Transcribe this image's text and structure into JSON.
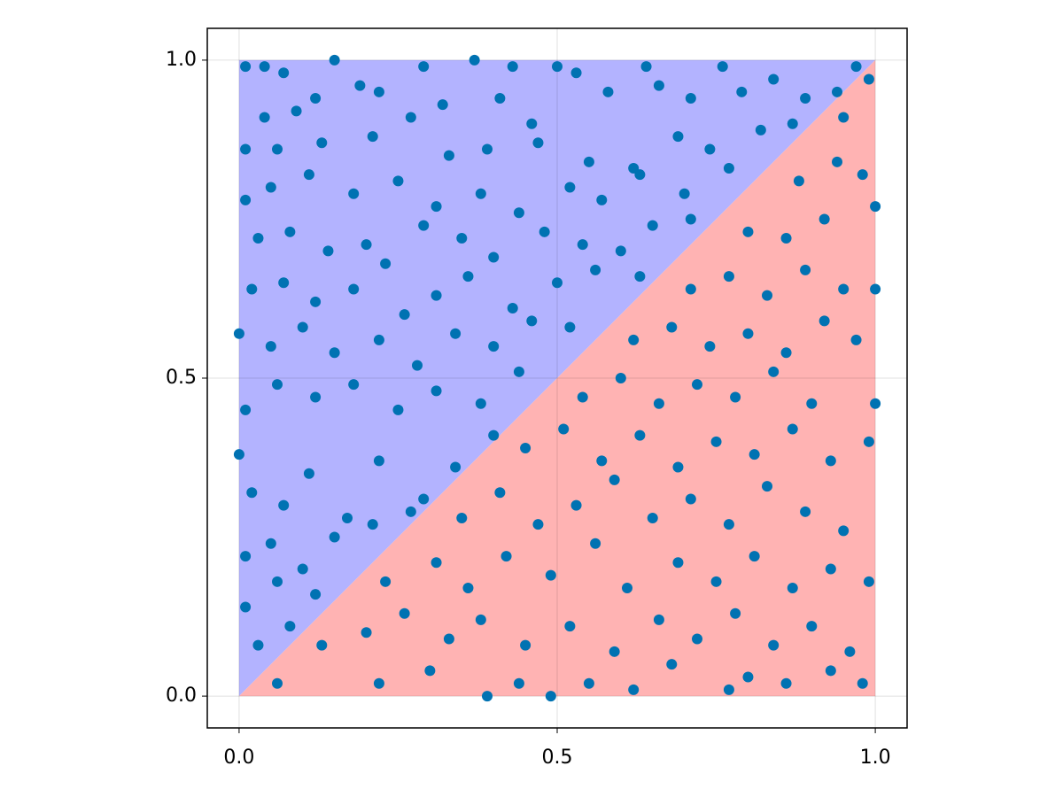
{
  "chart_data": {
    "type": "scatter",
    "x": [
      0.01,
      0.04,
      0.15,
      0.37,
      0.5,
      0.64,
      0.76,
      0.29,
      0.43,
      0.53,
      0.07,
      0.12,
      0.19,
      0.22,
      0.04,
      0.09,
      0.27,
      0.32,
      0.41,
      0.46,
      0.58,
      0.66,
      0.71,
      0.79,
      0.84,
      0.89,
      0.94,
      0.97,
      0.01,
      0.06,
      0.13,
      0.21,
      0.33,
      0.39,
      0.47,
      0.55,
      0.62,
      0.69,
      0.74,
      0.82,
      0.87,
      0.01,
      0.05,
      0.11,
      0.18,
      0.25,
      0.31,
      0.38,
      0.44,
      0.52,
      0.57,
      0.63,
      0.7,
      0.77,
      0.03,
      0.08,
      0.14,
      0.2,
      0.23,
      0.29,
      0.35,
      0.4,
      0.48,
      0.54,
      0.6,
      0.65,
      0.71,
      0.02,
      0.07,
      0.12,
      0.18,
      0.26,
      0.31,
      0.36,
      0.43,
      0.5,
      0.56,
      0.63,
      0,
      0.05,
      0.1,
      0.15,
      0.22,
      0.28,
      0.34,
      0.4,
      0.46,
      0.52,
      0,
      0.01,
      0.06,
      0.12,
      0.18,
      0.25,
      0.31,
      0.38,
      0.44,
      0.02,
      0.07,
      0.11,
      0.17,
      0.22,
      0.29,
      0.34,
      0.4,
      0.01,
      0.05,
      0.1,
      0.15,
      0.21,
      0.27,
      0.01,
      0.06,
      0.12,
      0.03,
      0.08,
      0.39,
      0.49,
      0.62,
      0.77,
      0.22,
      0.06,
      0.3,
      0.44,
      0.55,
      0.68,
      0.8,
      0.86,
      0.93,
      0.98,
      0.13,
      0.2,
      0.26,
      0.33,
      0.38,
      0.45,
      0.52,
      0.59,
      0.66,
      0.72,
      0.78,
      0.84,
      0.9,
      0.96,
      0.23,
      0.31,
      0.36,
      0.42,
      0.49,
      0.56,
      0.61,
      0.69,
      0.75,
      0.81,
      0.87,
      0.93,
      0.99,
      0.35,
      0.41,
      0.47,
      0.53,
      0.59,
      0.65,
      0.71,
      0.77,
      0.83,
      0.89,
      0.95,
      0.45,
      0.51,
      0.57,
      0.63,
      0.69,
      0.75,
      0.81,
      0.87,
      0.93,
      0.99,
      0.54,
      0.6,
      0.66,
      0.72,
      0.78,
      0.84,
      0.9,
      1.0,
      0.62,
      0.68,
      0.74,
      0.8,
      0.86,
      0.92,
      0.97,
      0.71,
      0.77,
      0.83,
      0.89,
      0.95,
      1.0,
      0.8,
      0.86,
      0.92,
      1.0,
      0.88,
      0.94,
      0.98,
      0.95,
      0.99
    ],
    "values": [
      0.99,
      0.99,
      1.0,
      1.0,
      0.99,
      0.99,
      0.99,
      0.99,
      0.99,
      0.98,
      0.98,
      0.94,
      0.96,
      0.95,
      0.91,
      0.92,
      0.91,
      0.93,
      0.94,
      0.9,
      0.95,
      0.96,
      0.94,
      0.95,
      0.97,
      0.94,
      0.95,
      0.99,
      0.86,
      0.86,
      0.87,
      0.88,
      0.85,
      0.86,
      0.87,
      0.84,
      0.83,
      0.88,
      0.86,
      0.89,
      0.9,
      0.78,
      0.8,
      0.82,
      0.79,
      0.81,
      0.77,
      0.79,
      0.76,
      0.8,
      0.78,
      0.82,
      0.79,
      0.83,
      0.72,
      0.73,
      0.7,
      0.71,
      0.68,
      0.74,
      0.72,
      0.69,
      0.73,
      0.71,
      0.7,
      0.74,
      0.75,
      0.64,
      0.65,
      0.62,
      0.64,
      0.6,
      0.63,
      0.66,
      0.61,
      0.65,
      0.67,
      0.66,
      0.57,
      0.55,
      0.58,
      0.54,
      0.56,
      0.52,
      0.57,
      0.55,
      0.59,
      0.58,
      0.38,
      0.45,
      0.49,
      0.47,
      0.49,
      0.45,
      0.48,
      0.46,
      0.51,
      0.32,
      0.3,
      0.35,
      0.28,
      0.37,
      0.31,
      0.36,
      0.41,
      0.22,
      0.24,
      0.2,
      0.25,
      0.27,
      0.29,
      0.14,
      0.18,
      0.16,
      0.08,
      0.11,
      0,
      0,
      0.01,
      0.01,
      0.02,
      0.02,
      0.04,
      0.02,
      0.02,
      0.05,
      0.03,
      0.02,
      0.04,
      0.02,
      0.08,
      0.1,
      0.13,
      0.09,
      0.12,
      0.08,
      0.11,
      0.07,
      0.12,
      0.09,
      0.13,
      0.08,
      0.11,
      0.07,
      0.18,
      0.21,
      0.17,
      0.22,
      0.19,
      0.24,
      0.17,
      0.21,
      0.18,
      0.22,
      0.17,
      0.2,
      0.18,
      0.28,
      0.32,
      0.27,
      0.3,
      0.34,
      0.28,
      0.31,
      0.27,
      0.33,
      0.29,
      0.26,
      0.39,
      0.42,
      0.37,
      0.41,
      0.36,
      0.4,
      0.38,
      0.42,
      0.37,
      0.4,
      0.47,
      0.5,
      0.46,
      0.49,
      0.47,
      0.51,
      0.46,
      0.46,
      0.56,
      0.58,
      0.55,
      0.57,
      0.54,
      0.59,
      0.56,
      0.64,
      0.66,
      0.63,
      0.67,
      0.64,
      0.64,
      0.73,
      0.72,
      0.75,
      0.77,
      0.81,
      0.84,
      0.82,
      0.91,
      0.97
    ],
    "color": "#0072b2",
    "regions": [
      {
        "color": "#b3b3ff",
        "x": [
          0,
          0,
          1
        ],
        "y": [
          0,
          1,
          1
        ]
      },
      {
        "color": "#ffb3b3",
        "x": [
          0,
          1,
          1
        ],
        "y": [
          0,
          0,
          1
        ]
      }
    ],
    "xlim": [
      -0.05,
      1.05
    ],
    "ylim": [
      -0.05,
      1.05
    ],
    "xticks": [
      {
        "value": 0,
        "label": "0.0"
      },
      {
        "value": 0.5,
        "label": "0.5"
      },
      {
        "value": 1,
        "label": "1.0"
      }
    ],
    "yticks": [
      {
        "value": 0,
        "label": "0.0"
      },
      {
        "value": 0.5,
        "label": "0.5"
      },
      {
        "value": 1,
        "label": "1.0"
      }
    ],
    "grid": true
  }
}
